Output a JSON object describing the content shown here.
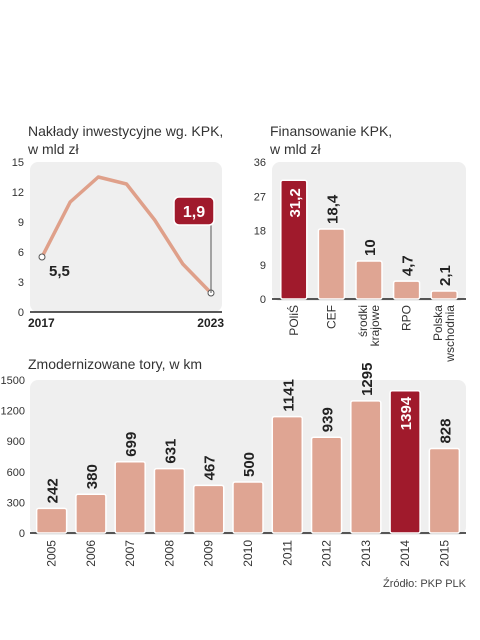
{
  "source": "Źródło: PKP PLK",
  "colors": {
    "bar": "#dfa593",
    "highlight": "#a01a2c",
    "panel": "#efefef",
    "line": "#dfa08a",
    "label_box": "#a01a2c"
  },
  "chart_data": [
    {
      "type": "line",
      "title": "Nakłady inwestycyjne wg. KPK,",
      "subtitle": "w mld zł",
      "x": [
        2017,
        2018,
        2019,
        2020,
        2021,
        2022,
        2023
      ],
      "values": [
        5.5,
        11.0,
        13.5,
        12.8,
        9.2,
        4.8,
        1.9
      ],
      "x_tick_labels": [
        "2017",
        "2023"
      ],
      "y_ticks": [
        "0",
        "3",
        "6",
        "9",
        "12",
        "15"
      ],
      "ylim": [
        0,
        15
      ],
      "grid": false,
      "labels": {
        "start": "5,5",
        "end": "1,9"
      }
    },
    {
      "type": "bar",
      "title": "Finansowanie KPK,",
      "subtitle": "w mld zł",
      "categories": [
        "POliŚ",
        "CEF",
        "środki krajowe",
        "RPO",
        "Polska wschodnia"
      ],
      "category_lines": [
        [
          "POliŚ"
        ],
        [
          "CEF"
        ],
        [
          "środki",
          "krajowe"
        ],
        [
          "RPO"
        ],
        [
          "Polska",
          "wschodnia"
        ]
      ],
      "values": [
        31.2,
        18.4,
        10,
        4.7,
        2.1
      ],
      "value_labels": [
        "31,2",
        "18,4",
        "10",
        "4,7",
        "2,1"
      ],
      "highlight": 0,
      "y_ticks": [
        "0",
        "9",
        "18",
        "27",
        "36"
      ],
      "ylim": [
        0,
        36
      ],
      "grid": false
    },
    {
      "type": "bar",
      "title": "Zmodernizowane tory, w km",
      "categories": [
        "2005",
        "2006",
        "2007",
        "2008",
        "2009",
        "2010",
        "2011",
        "2012",
        "2013",
        "2014",
        "2015"
      ],
      "values": [
        242,
        380,
        699,
        631,
        467,
        500,
        1141,
        939,
        1295,
        1394,
        828
      ],
      "value_labels": [
        "242",
        "380",
        "699",
        "631",
        "467",
        "500",
        "1141",
        "939",
        "1295",
        "1394",
        "828"
      ],
      "highlight": 9,
      "y_ticks": [
        "0",
        "300",
        "600",
        "900",
        "1200",
        "1500"
      ],
      "ylim": [
        0,
        1500
      ],
      "grid": false
    }
  ]
}
